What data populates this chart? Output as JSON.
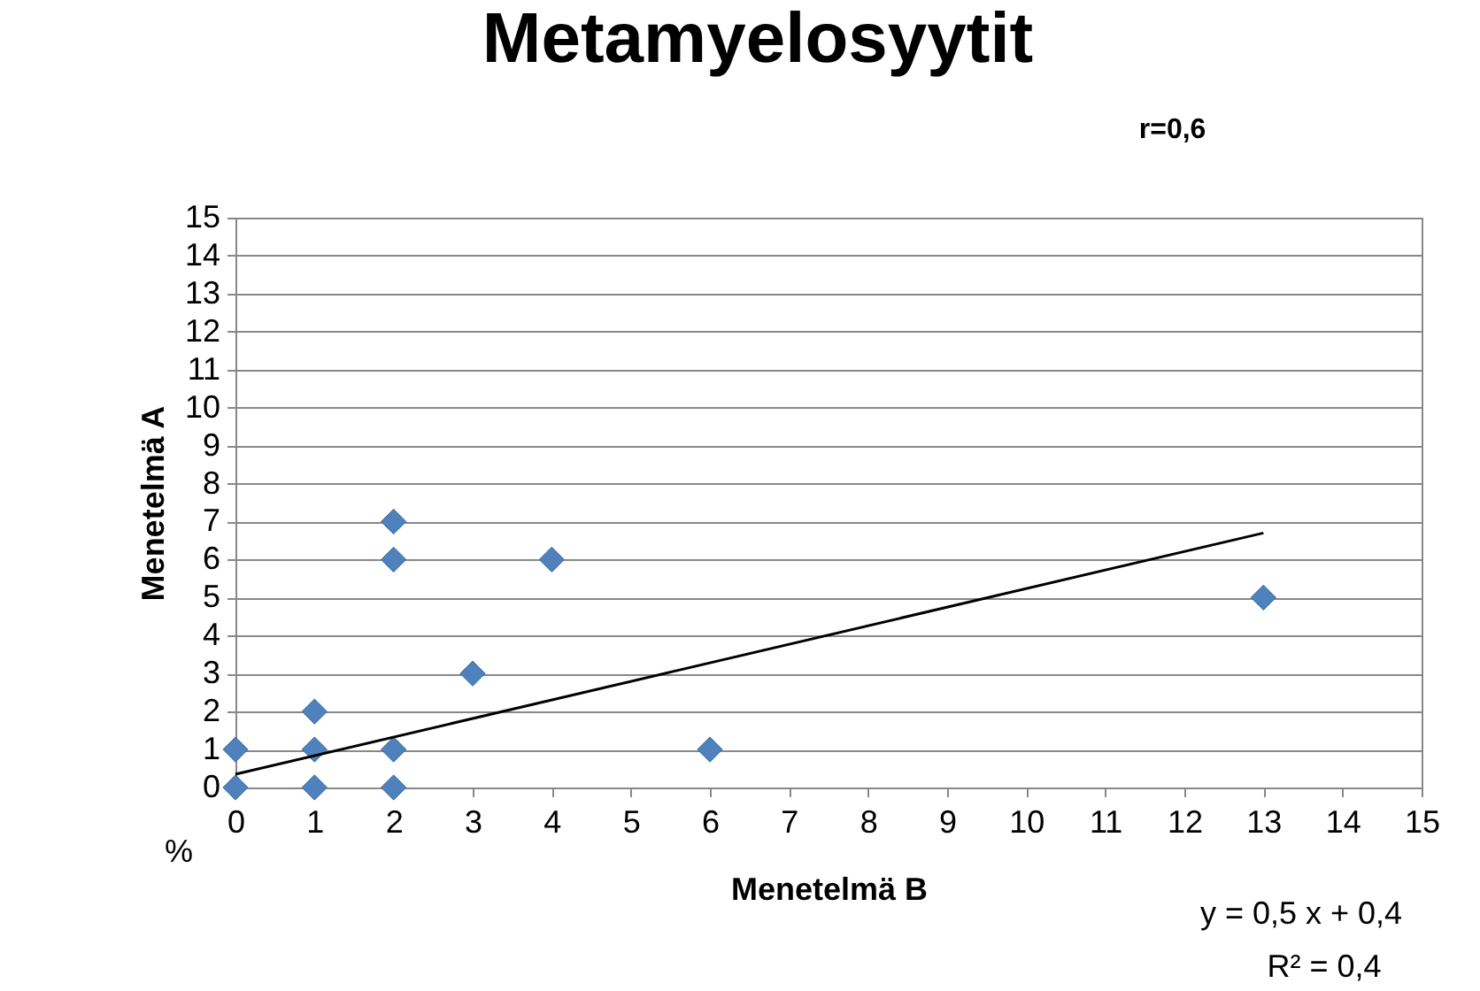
{
  "chart_data": {
    "type": "scatter",
    "title": "Metamyelosyytit",
    "xlabel": "Menetelmä B",
    "ylabel": "Menetelmä A",
    "annotations": [
      "r=0,6",
      "%",
      "y = 0,5 x + 0,4",
      "R² = 0,4"
    ],
    "xlim": [
      0,
      15
    ],
    "ylim": [
      0,
      15
    ],
    "xticks": [
      0,
      1,
      2,
      3,
      4,
      5,
      6,
      7,
      8,
      9,
      10,
      11,
      12,
      13,
      14,
      15
    ],
    "yticks": [
      0,
      1,
      2,
      3,
      4,
      5,
      6,
      7,
      8,
      9,
      10,
      11,
      12,
      13,
      14,
      15
    ],
    "grid": "y",
    "series": [
      {
        "color": "#4f81bd",
        "marker": "diamond",
        "x": [
          0,
          0,
          1,
          1,
          1,
          2,
          2,
          2,
          2,
          3,
          4,
          6,
          13
        ],
        "values": [
          0,
          1,
          0,
          1,
          2,
          0,
          1,
          6,
          7,
          3,
          6,
          1,
          5
        ]
      },
      {
        "type": "line",
        "color": "#000000",
        "x": [
          0,
          13
        ],
        "values": [
          0.35,
          6.7
        ]
      }
    ]
  }
}
